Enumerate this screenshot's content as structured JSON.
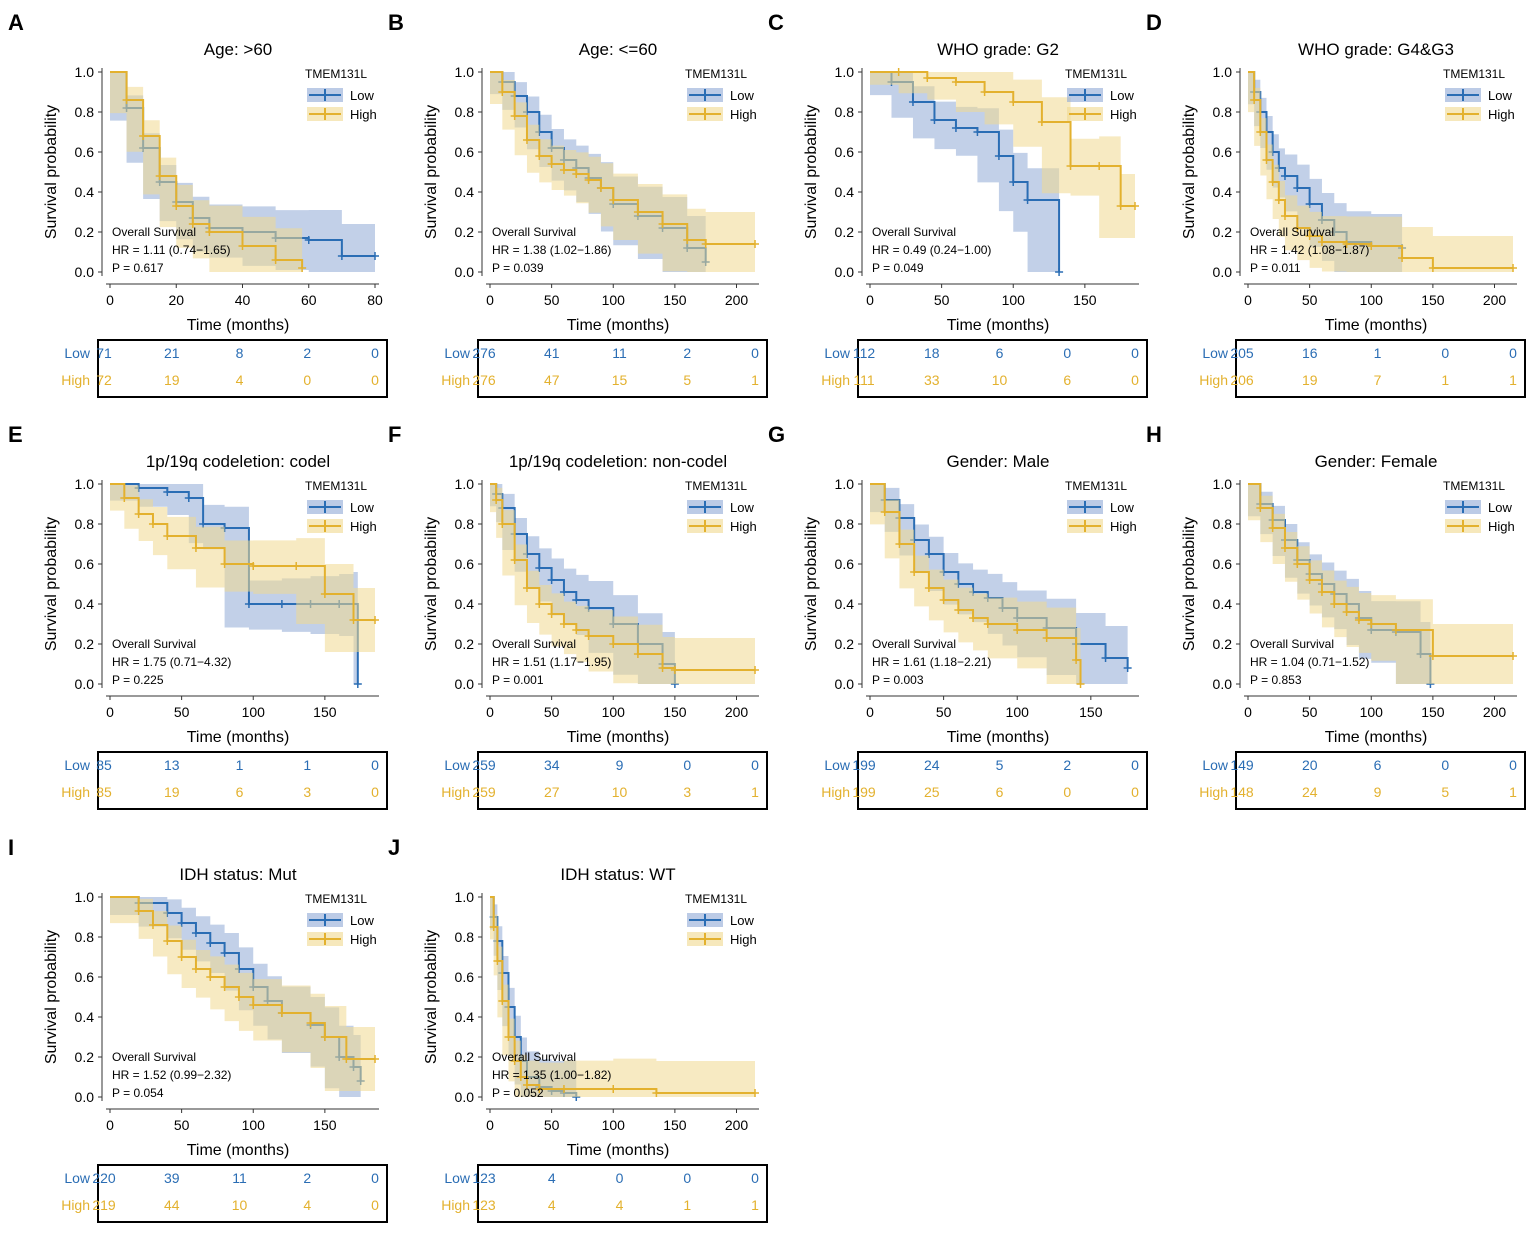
{
  "figure": {
    "colors": {
      "low": "#2a6db4",
      "high": "#e3b12e",
      "low_band": "#8fa9d6",
      "high_band": "#f0d88f"
    },
    "shared": {
      "legend_title": "TMEM131L",
      "legend_low": "Low",
      "legend_high": "High",
      "ylabel": "Survival probability",
      "xlabel": "Time (months)",
      "os_label": "Overall Survival",
      "risk_low_label": "Low",
      "risk_high_label": "High"
    }
  },
  "chart_data": [
    {
      "panel": "A",
      "type": "line",
      "title": "Age: >60",
      "hr": "HR = 1.11 (0.74−1.65)",
      "p": "P = 0.617",
      "xlim": [
        0,
        80
      ],
      "xticks": [
        0,
        20,
        40,
        60,
        80
      ],
      "ylim": [
        0,
        1
      ],
      "yticks": [
        "0.0",
        "0.2",
        "0.4",
        "0.6",
        "0.8",
        "1.0"
      ],
      "series": [
        {
          "name": "Low",
          "x": [
            0,
            5,
            10,
            15,
            20,
            25,
            30,
            40,
            50,
            60,
            70,
            80
          ],
          "y": [
            1.0,
            0.82,
            0.62,
            0.45,
            0.35,
            0.27,
            0.22,
            0.2,
            0.17,
            0.16,
            0.08,
            0.08
          ]
        },
        {
          "name": "High",
          "x": [
            0,
            5,
            10,
            15,
            20,
            25,
            30,
            40,
            50,
            58
          ],
          "y": [
            1.0,
            0.86,
            0.68,
            0.48,
            0.33,
            0.24,
            0.2,
            0.13,
            0.06,
            0.02
          ]
        }
      ],
      "risk_table": {
        "times": [
          0,
          20,
          40,
          60,
          80
        ],
        "low": [
          "71",
          "21",
          "8",
          "2",
          "0"
        ],
        "high": [
          "72",
          "19",
          "4",
          "0",
          "0"
        ]
      }
    },
    {
      "panel": "B",
      "type": "line",
      "title": "Age: <=60",
      "hr": "HR = 1.38 (1.02−1.86)",
      "p": "P = 0.039",
      "xlim": [
        0,
        215
      ],
      "xticks": [
        0,
        50,
        100,
        150,
        200
      ],
      "ylim": [
        0,
        1
      ],
      "yticks": [
        "0.0",
        "0.2",
        "0.4",
        "0.6",
        "0.8",
        "1.0"
      ],
      "series": [
        {
          "name": "Low",
          "x": [
            0,
            10,
            20,
            30,
            40,
            50,
            60,
            70,
            80,
            90,
            100,
            120,
            140,
            160,
            175
          ],
          "y": [
            1.0,
            0.95,
            0.88,
            0.8,
            0.7,
            0.62,
            0.56,
            0.52,
            0.47,
            0.42,
            0.34,
            0.28,
            0.22,
            0.12,
            0.05
          ]
        },
        {
          "name": "High",
          "x": [
            0,
            10,
            20,
            30,
            40,
            50,
            60,
            70,
            80,
            90,
            100,
            120,
            140,
            160,
            175,
            215
          ],
          "y": [
            1.0,
            0.9,
            0.78,
            0.66,
            0.58,
            0.54,
            0.51,
            0.49,
            0.46,
            0.42,
            0.36,
            0.3,
            0.24,
            0.16,
            0.14,
            0.14
          ]
        }
      ],
      "risk_table": {
        "times": [
          0,
          50,
          100,
          150,
          200
        ],
        "low": [
          "276",
          "41",
          "11",
          "2",
          "0"
        ],
        "high": [
          "276",
          "47",
          "15",
          "5",
          "1"
        ]
      }
    },
    {
      "panel": "C",
      "type": "line",
      "title": "WHO grade: G2",
      "hr": "HR = 0.49 (0.24−1.00)",
      "p": "P = 0.049",
      "xlim": [
        0,
        185
      ],
      "xticks": [
        0,
        50,
        100,
        150
      ],
      "ylim": [
        0,
        1
      ],
      "yticks": [
        "0.0",
        "0.2",
        "0.4",
        "0.6",
        "0.8",
        "1.0"
      ],
      "series": [
        {
          "name": "Low",
          "x": [
            0,
            15,
            30,
            45,
            60,
            75,
            90,
            100,
            110,
            132
          ],
          "y": [
            1.0,
            0.95,
            0.85,
            0.76,
            0.72,
            0.7,
            0.58,
            0.45,
            0.36,
            0.0
          ]
        },
        {
          "name": "High",
          "x": [
            0,
            20,
            40,
            60,
            80,
            100,
            120,
            140,
            160,
            175,
            185
          ],
          "y": [
            1.0,
            1.0,
            0.97,
            0.95,
            0.9,
            0.85,
            0.75,
            0.53,
            0.53,
            0.33,
            0.33
          ]
        }
      ],
      "risk_table": {
        "times": [
          0,
          50,
          100,
          150,
          200
        ],
        "low": [
          "112",
          "18",
          "6",
          "0",
          "0"
        ],
        "high": [
          "111",
          "33",
          "10",
          "6",
          "0"
        ]
      }
    },
    {
      "panel": "D",
      "type": "line",
      "title": "WHO grade: G4&G3",
      "hr": "HR = 1.42 (1.08−1.87)",
      "p": "P = 0.011",
      "xlim": [
        0,
        215
      ],
      "xticks": [
        0,
        50,
        100,
        150,
        200
      ],
      "ylim": [
        0,
        1
      ],
      "yticks": [
        "0.0",
        "0.2",
        "0.4",
        "0.6",
        "0.8",
        "1.0"
      ],
      "series": [
        {
          "name": "Low",
          "x": [
            0,
            5,
            10,
            15,
            20,
            25,
            30,
            40,
            50,
            60,
            70,
            80,
            100,
            125
          ],
          "y": [
            1.0,
            0.9,
            0.8,
            0.7,
            0.6,
            0.52,
            0.48,
            0.42,
            0.34,
            0.26,
            0.2,
            0.15,
            0.13,
            0.12
          ]
        },
        {
          "name": "High",
          "x": [
            0,
            5,
            10,
            15,
            20,
            25,
            30,
            40,
            50,
            60,
            80,
            100,
            125,
            150,
            215
          ],
          "y": [
            1.0,
            0.86,
            0.7,
            0.56,
            0.45,
            0.36,
            0.28,
            0.22,
            0.18,
            0.15,
            0.14,
            0.13,
            0.07,
            0.02,
            0.02
          ]
        }
      ],
      "risk_table": {
        "times": [
          0,
          50,
          100,
          150,
          200
        ],
        "low": [
          "205",
          "16",
          "1",
          "0",
          "0"
        ],
        "high": [
          "206",
          "19",
          "7",
          "1",
          "1"
        ]
      }
    },
    {
      "panel": "E",
      "type": "line",
      "title": "1p/19q codeletion: codel",
      "hr": "HR = 1.75 (0.71−4.32)",
      "p": "P = 0.225",
      "xlim": [
        0,
        185
      ],
      "xticks": [
        0,
        50,
        100,
        150
      ],
      "ylim": [
        0,
        1
      ],
      "yticks": [
        "0.0",
        "0.2",
        "0.4",
        "0.6",
        "0.8",
        "1.0"
      ],
      "series": [
        {
          "name": "Low",
          "x": [
            0,
            20,
            40,
            55,
            65,
            80,
            97,
            120,
            140,
            160,
            170,
            173
          ],
          "y": [
            1.0,
            0.98,
            0.96,
            0.93,
            0.8,
            0.78,
            0.4,
            0.4,
            0.4,
            0.4,
            0.4,
            0.0
          ]
        },
        {
          "name": "High",
          "x": [
            0,
            10,
            20,
            30,
            40,
            60,
            80,
            100,
            130,
            150,
            170,
            185
          ],
          "y": [
            1.0,
            0.93,
            0.85,
            0.8,
            0.74,
            0.68,
            0.6,
            0.59,
            0.59,
            0.45,
            0.32,
            0.32
          ]
        }
      ],
      "risk_table": {
        "times": [
          0,
          50,
          100,
          150,
          200
        ],
        "low": [
          "85",
          "13",
          "1",
          "1",
          "0"
        ],
        "high": [
          "85",
          "19",
          "6",
          "3",
          "0"
        ]
      }
    },
    {
      "panel": "F",
      "type": "line",
      "title": "1p/19q codeletion: non-codel",
      "hr": "HR = 1.51 (1.17−1.95)",
      "p": "P = 0.001",
      "xlim": [
        0,
        215
      ],
      "xticks": [
        0,
        50,
        100,
        150,
        200
      ],
      "ylim": [
        0,
        1
      ],
      "yticks": [
        "0.0",
        "0.2",
        "0.4",
        "0.6",
        "0.8",
        "1.0"
      ],
      "series": [
        {
          "name": "Low",
          "x": [
            0,
            5,
            10,
            20,
            30,
            40,
            50,
            60,
            70,
            80,
            100,
            120,
            140,
            150
          ],
          "y": [
            1.0,
            0.95,
            0.88,
            0.75,
            0.65,
            0.58,
            0.52,
            0.46,
            0.42,
            0.38,
            0.3,
            0.2,
            0.1,
            0.0
          ]
        },
        {
          "name": "High",
          "x": [
            0,
            5,
            10,
            20,
            30,
            40,
            50,
            60,
            70,
            80,
            100,
            120,
            140,
            150,
            215
          ],
          "y": [
            1.0,
            0.92,
            0.8,
            0.62,
            0.48,
            0.4,
            0.35,
            0.3,
            0.27,
            0.24,
            0.2,
            0.15,
            0.08,
            0.07,
            0.07
          ]
        }
      ],
      "risk_table": {
        "times": [
          0,
          50,
          100,
          150,
          200
        ],
        "low": [
          "259",
          "34",
          "9",
          "0",
          "0"
        ],
        "high": [
          "259",
          "27",
          "10",
          "3",
          "1"
        ]
      }
    },
    {
      "panel": "G",
      "type": "line",
      "title": "Gender: Male",
      "hr": "HR = 1.61 (1.18−2.21)",
      "p": "P = 0.003",
      "xlim": [
        0,
        180
      ],
      "xticks": [
        0,
        50,
        100,
        150
      ],
      "ylim": [
        0,
        1
      ],
      "yticks": [
        "0.0",
        "0.2",
        "0.4",
        "0.6",
        "0.8",
        "1.0"
      ],
      "series": [
        {
          "name": "Low",
          "x": [
            0,
            10,
            20,
            30,
            40,
            50,
            60,
            70,
            80,
            90,
            100,
            120,
            140,
            160,
            175
          ],
          "y": [
            1.0,
            0.92,
            0.83,
            0.72,
            0.65,
            0.56,
            0.5,
            0.46,
            0.43,
            0.38,
            0.33,
            0.28,
            0.2,
            0.13,
            0.08
          ]
        },
        {
          "name": "High",
          "x": [
            0,
            10,
            20,
            30,
            40,
            50,
            60,
            70,
            80,
            100,
            120,
            140,
            143
          ],
          "y": [
            1.0,
            0.86,
            0.7,
            0.56,
            0.48,
            0.42,
            0.37,
            0.33,
            0.3,
            0.27,
            0.23,
            0.12,
            0.0
          ]
        }
      ],
      "risk_table": {
        "times": [
          0,
          50,
          100,
          150,
          200
        ],
        "low": [
          "199",
          "24",
          "5",
          "2",
          "0"
        ],
        "high": [
          "199",
          "25",
          "6",
          "0",
          "0"
        ]
      }
    },
    {
      "panel": "H",
      "type": "line",
      "title": "Gender: Female",
      "hr": "HR = 1.04 (0.71−1.52)",
      "p": "P = 0.853",
      "xlim": [
        0,
        215
      ],
      "xticks": [
        0,
        50,
        100,
        150,
        200
      ],
      "ylim": [
        0,
        1
      ],
      "yticks": [
        "0.0",
        "0.2",
        "0.4",
        "0.6",
        "0.8",
        "1.0"
      ],
      "series": [
        {
          "name": "Low",
          "x": [
            0,
            10,
            20,
            30,
            40,
            50,
            60,
            70,
            80,
            90,
            100,
            120,
            140,
            148
          ],
          "y": [
            1.0,
            0.9,
            0.82,
            0.72,
            0.62,
            0.55,
            0.5,
            0.45,
            0.4,
            0.33,
            0.27,
            0.26,
            0.15,
            0.0
          ]
        },
        {
          "name": "High",
          "x": [
            0,
            10,
            20,
            30,
            40,
            50,
            60,
            70,
            80,
            90,
            100,
            120,
            150,
            215
          ],
          "y": [
            1.0,
            0.88,
            0.78,
            0.68,
            0.6,
            0.52,
            0.46,
            0.4,
            0.36,
            0.32,
            0.3,
            0.27,
            0.14,
            0.14
          ]
        }
      ],
      "risk_table": {
        "times": [
          0,
          50,
          100,
          150,
          200
        ],
        "low": [
          "149",
          "20",
          "6",
          "0",
          "0"
        ],
        "high": [
          "148",
          "24",
          "9",
          "5",
          "1"
        ]
      }
    },
    {
      "panel": "I",
      "type": "line",
      "title": "IDH status: Mut",
      "hr": "HR = 1.52 (0.99−2.32)",
      "p": "P = 0.054",
      "xlim": [
        0,
        185
      ],
      "xticks": [
        0,
        50,
        100,
        150
      ],
      "ylim": [
        0,
        1
      ],
      "yticks": [
        "0.0",
        "0.2",
        "0.4",
        "0.6",
        "0.8",
        "1.0"
      ],
      "series": [
        {
          "name": "Low",
          "x": [
            0,
            20,
            40,
            50,
            60,
            70,
            80,
            90,
            100,
            110,
            120,
            140,
            150,
            160,
            170,
            175
          ],
          "y": [
            1.0,
            0.97,
            0.92,
            0.87,
            0.82,
            0.77,
            0.72,
            0.64,
            0.55,
            0.48,
            0.42,
            0.36,
            0.3,
            0.2,
            0.15,
            0.08
          ]
        },
        {
          "name": "High",
          "x": [
            0,
            20,
            30,
            40,
            50,
            60,
            70,
            80,
            90,
            100,
            120,
            140,
            150,
            165,
            185
          ],
          "y": [
            1.0,
            0.93,
            0.86,
            0.78,
            0.7,
            0.64,
            0.6,
            0.55,
            0.5,
            0.46,
            0.42,
            0.37,
            0.3,
            0.19,
            0.19
          ]
        }
      ],
      "risk_table": {
        "times": [
          0,
          50,
          100,
          150,
          200
        ],
        "low": [
          "220",
          "39",
          "11",
          "2",
          "0"
        ],
        "high": [
          "219",
          "44",
          "10",
          "4",
          "0"
        ]
      }
    },
    {
      "panel": "J",
      "type": "line",
      "title": "IDH status: WT",
      "hr": "HR = 1.35 (1.00−1.82)",
      "p": "P = 0.052",
      "xlim": [
        0,
        215
      ],
      "xticks": [
        0,
        50,
        100,
        150,
        200
      ],
      "ylim": [
        0,
        1
      ],
      "yticks": [
        "0.0",
        "0.2",
        "0.4",
        "0.6",
        "0.8",
        "1.0"
      ],
      "series": [
        {
          "name": "Low",
          "x": [
            0,
            3,
            6,
            10,
            15,
            20,
            25,
            30,
            40,
            50,
            60,
            70
          ],
          "y": [
            1.0,
            0.9,
            0.78,
            0.62,
            0.45,
            0.3,
            0.18,
            0.1,
            0.05,
            0.03,
            0.02,
            0.0
          ]
        },
        {
          "name": "High",
          "x": [
            0,
            3,
            6,
            10,
            15,
            20,
            25,
            30,
            40,
            60,
            100,
            135,
            215
          ],
          "y": [
            1.0,
            0.85,
            0.68,
            0.48,
            0.3,
            0.18,
            0.1,
            0.06,
            0.04,
            0.04,
            0.04,
            0.02,
            0.02
          ]
        }
      ],
      "risk_table": {
        "times": [
          0,
          50,
          100,
          150,
          200
        ],
        "low": [
          "123",
          "4",
          "0",
          "0",
          "0"
        ],
        "high": [
          "123",
          "4",
          "4",
          "1",
          "1"
        ]
      }
    }
  ]
}
